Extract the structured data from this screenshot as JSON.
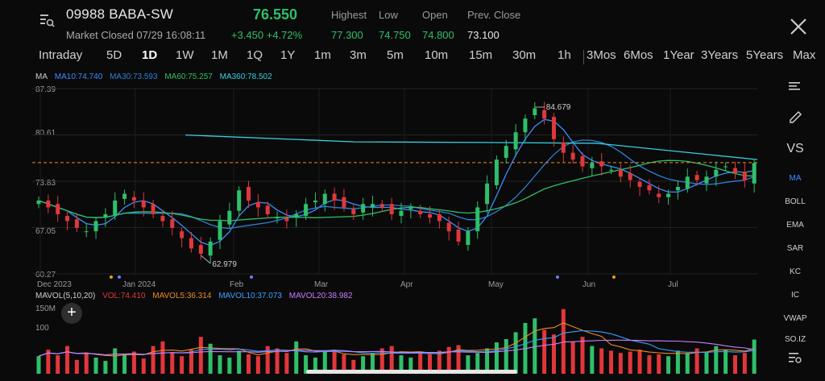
{
  "header": {
    "ticker": "09988 BABA-SW",
    "price": "76.550",
    "status": "Market Closed 07/29 16:08:11",
    "change": "+3.450",
    "change_pct": "+4.72%",
    "stats": [
      {
        "label": "Highest",
        "value": "77.300"
      },
      {
        "label": "Low",
        "value": "74.750"
      },
      {
        "label": "Open",
        "value": "74.800"
      },
      {
        "label": "Prev. Close",
        "value": "73.100"
      }
    ],
    "up_color": "#2fbf6a",
    "down_color": "#e2373a",
    "icons": {
      "menu": "list-search-icon",
      "close": "close-icon"
    }
  },
  "tabs": [
    "Intraday",
    "5D",
    "1D",
    "1W",
    "1M",
    "1Q",
    "1Y",
    "1m",
    "3m",
    "5m",
    "10m",
    "15m",
    "30m",
    "1h",
    "3Mos",
    "6Mos",
    "1Year",
    "3Years",
    "5Years",
    "Max"
  ],
  "active_tab": "1D",
  "ma_legend": {
    "title": "MA",
    "items": [
      {
        "label": "MA10:74.740",
        "color": "#3a8dff"
      },
      {
        "label": "MA30:73.593",
        "color": "#2f7fd8"
      },
      {
        "label": "MA60:75.257",
        "color": "#2fbf6a"
      },
      {
        "label": "MA360:78.502",
        "color": "#38d0e0"
      }
    ]
  },
  "vol_legend": {
    "title": "MAVOL(5,10,20)",
    "items": [
      {
        "label": "VOL:74.410",
        "color": "#e2373a"
      },
      {
        "label": "MAVOL5:36.314",
        "color": "#f08a24"
      },
      {
        "label": "MAVOL10:37.073",
        "color": "#3aa0ff"
      },
      {
        "label": "MAVOL20:38.982",
        "color": "#c77dff"
      }
    ]
  },
  "side_tools": {
    "top_icons": [
      "lines-icon",
      "pencil-icon"
    ],
    "vs": "VS",
    "items": [
      "MA",
      "BOLL",
      "EMA",
      "SAR",
      "KC",
      "IC",
      "VWAP",
      "SO.IZ"
    ],
    "bottom_icon": "settings-list-icon"
  },
  "fab": "+",
  "chart_data": {
    "type": "candlestick",
    "y_ticks": [
      "87.39",
      "80.61",
      "73.83",
      "67.05",
      "60.27"
    ],
    "ylim": [
      60.27,
      87.39
    ],
    "x_labels": [
      "Dec 2023",
      "Jan 2024",
      "Feb",
      "Mar",
      "Apr",
      "May",
      "Jun",
      "Jul"
    ],
    "annotations": [
      {
        "text": "84.679",
        "value": 84.679,
        "type": "high"
      },
      {
        "text": "62.979",
        "value": 62.979,
        "type": "low"
      }
    ],
    "last_close": 76.55,
    "close_path": [
      71,
      70,
      69,
      68,
      67,
      66.5,
      68,
      69,
      71,
      72,
      71,
      70,
      69,
      68,
      67,
      65.5,
      64,
      63.2,
      65,
      68,
      69.5,
      72.5,
      71,
      70,
      69,
      68.5,
      68,
      69,
      70.5,
      71,
      72,
      71,
      70,
      69,
      70.5,
      70.5,
      70,
      69,
      69.5,
      70,
      69,
      68.5,
      68,
      66.5,
      65,
      66.5,
      70,
      73.5,
      77,
      79,
      81,
      83,
      84.5,
      83,
      80,
      78,
      77,
      76,
      76.5,
      76,
      75.5,
      74.5,
      74,
      73,
      72.5,
      71.5,
      72,
      73,
      74.5,
      74,
      74.5,
      75.5,
      76,
      75,
      74,
      76.5
    ],
    "vol_ylim": [
      0,
      150
    ],
    "vol_ticks": [
      "150M",
      "100"
    ],
    "volume": [
      38,
      52,
      40,
      60,
      30,
      45,
      35,
      28,
      55,
      42,
      48,
      33,
      60,
      70,
      45,
      38,
      52,
      80,
      65,
      40,
      35,
      50,
      42,
      38,
      60,
      55,
      45,
      70,
      40,
      35,
      48,
      52,
      42,
      30,
      38,
      45,
      55,
      60,
      40,
      35,
      48,
      42,
      50,
      58,
      62,
      40,
      45,
      55,
      68,
      75,
      90,
      110,
      120,
      95,
      85,
      140,
      70,
      80,
      60,
      55,
      50,
      45,
      48,
      52,
      40,
      42,
      38,
      50,
      45,
      55,
      48,
      60,
      52,
      40,
      45,
      74
    ]
  }
}
